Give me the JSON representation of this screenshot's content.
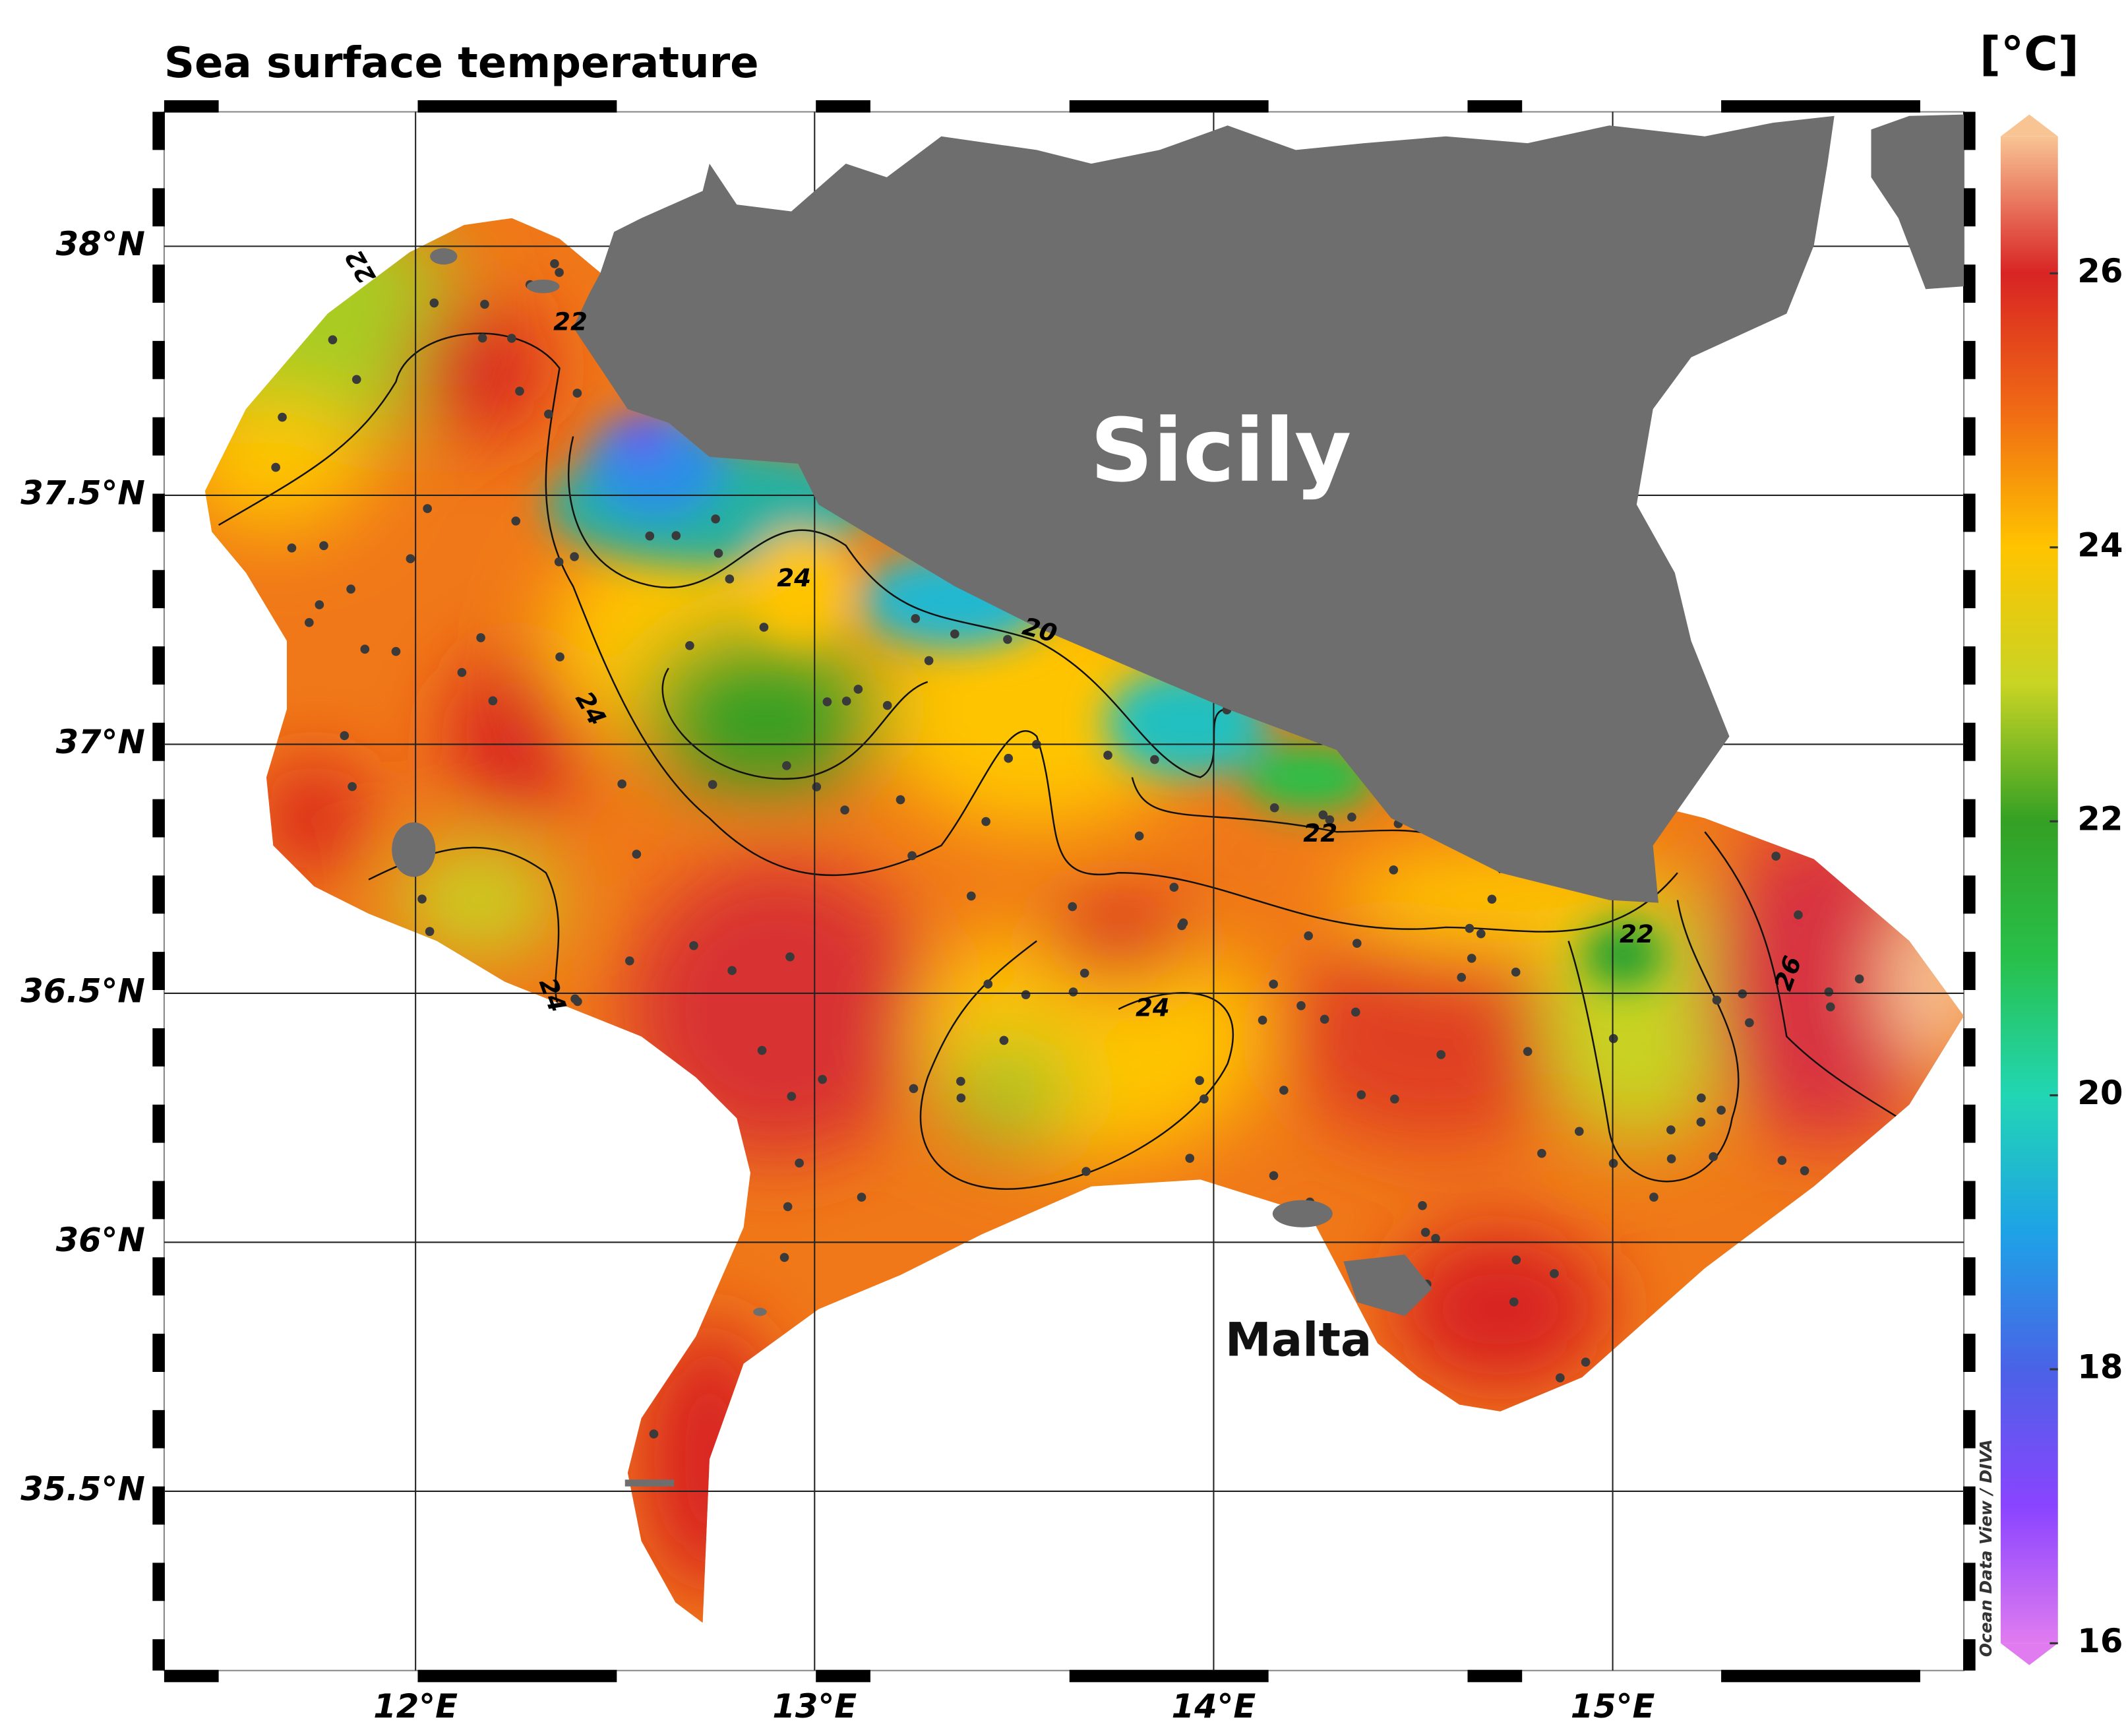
{
  "title": "Sea surface temperature",
  "map": {
    "lon_range": [
      11.37,
      15.88
    ],
    "lat_range": [
      35.14,
      38.27
    ],
    "lon_ticks": [
      {
        "value": 12,
        "label": "12°E"
      },
      {
        "value": 13,
        "label": "13°E"
      },
      {
        "value": 14,
        "label": "14°E"
      },
      {
        "value": 15,
        "label": "15°E"
      }
    ],
    "lat_ticks": [
      {
        "value": 38,
        "label": "38°N"
      },
      {
        "value": 37.5,
        "label": "37.5°N"
      },
      {
        "value": 37,
        "label": "37°N"
      },
      {
        "value": 36.5,
        "label": "36.5°N"
      },
      {
        "value": 36,
        "label": "36°N"
      },
      {
        "value": 35.5,
        "label": "35.5°N"
      }
    ],
    "places": [
      "Sicily",
      "Malta"
    ],
    "contour_labels": [
      "22",
      "22",
      "24",
      "20",
      "24",
      "24",
      "22",
      "24",
      "22",
      "26"
    ]
  },
  "colorbar": {
    "label": "[°C]",
    "range": [
      16,
      27
    ],
    "ticks": [
      16,
      18,
      20,
      22,
      24,
      26
    ],
    "colors": [
      "#e07cf0",
      "#8a44ff",
      "#4a62e6",
      "#1ea2e6",
      "#22d6b4",
      "#28c04a",
      "#34a024",
      "#c8d424",
      "#ffc400",
      "#f06a14",
      "#d82424",
      "#f8c494"
    ]
  },
  "credit": "Ocean Data View / DIVA"
}
